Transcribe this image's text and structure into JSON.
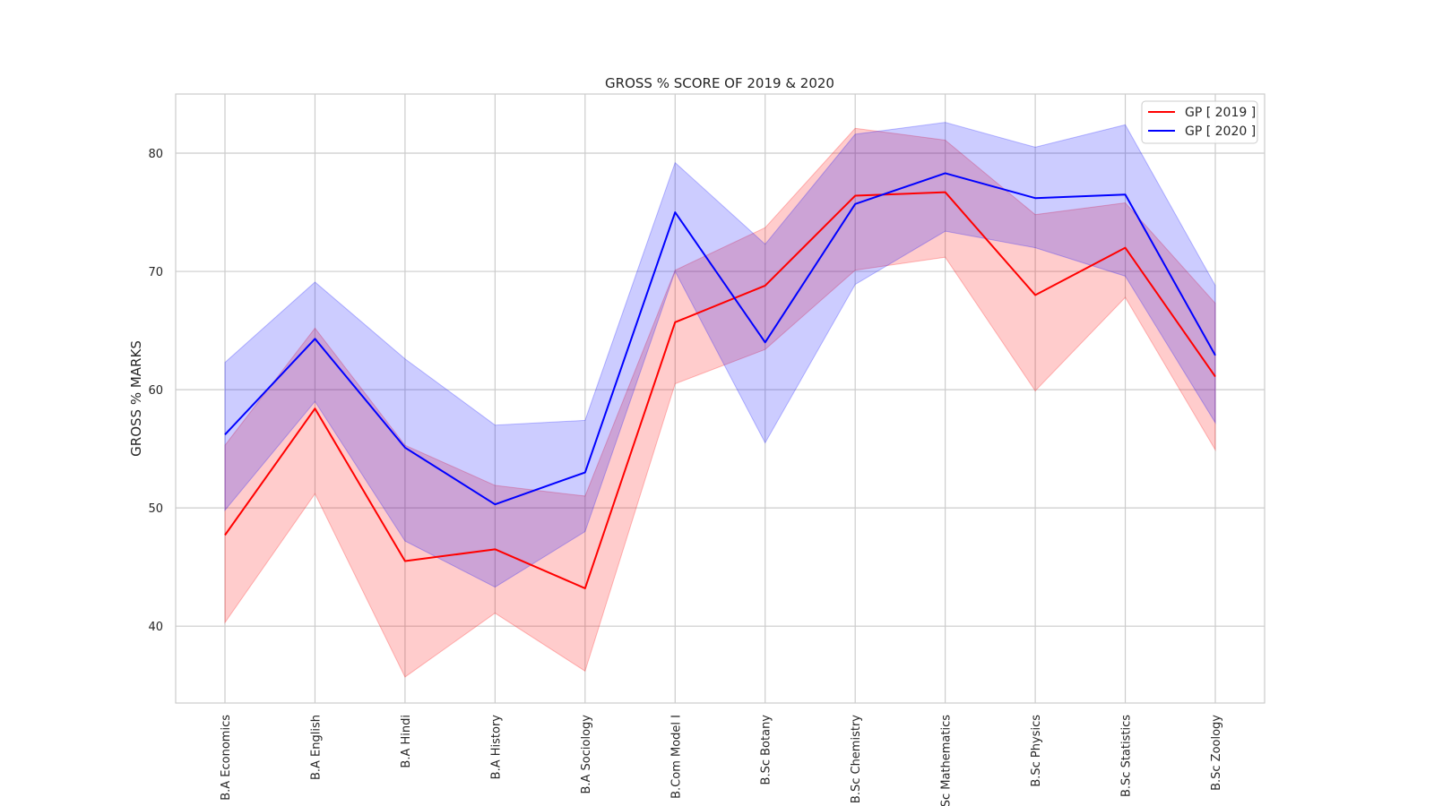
{
  "chart_data": {
    "type": "line",
    "title": "GROSS % SCORE OF 2019 & 2020",
    "xlabel": "",
    "ylabel": "GROSS % MARKS",
    "ylim": [
      33.5,
      85
    ],
    "yticks": [
      40,
      50,
      60,
      70,
      80
    ],
    "categories": [
      "B.A Economics",
      "B.A English",
      "B.A Hindi",
      "B.A History",
      "B.A Sociology",
      "B.Com Model I",
      "B.Sc Botany",
      "B.Sc Chemistry",
      "B.Sc Mathematics",
      "B.Sc Physics",
      "B.Sc Statistics",
      "B.Sc Zoology"
    ],
    "grid": true,
    "legend": "top-right",
    "series": [
      {
        "name": "GP [ 2019 ]",
        "color": "#ff0000",
        "values": [
          47.7,
          58.4,
          45.5,
          46.5,
          43.2,
          65.7,
          68.8,
          76.4,
          76.7,
          68.0,
          72.0,
          61.1
        ],
        "band_lower": [
          40.3,
          51.2,
          35.7,
          41.1,
          36.2,
          60.5,
          63.4,
          70.1,
          71.2,
          59.9,
          67.8,
          54.9
        ],
        "band_upper": [
          55.3,
          65.2,
          55.3,
          51.9,
          51.0,
          70.1,
          73.7,
          82.1,
          81.1,
          74.8,
          75.8,
          67.3
        ]
      },
      {
        "name": "GP [ 2020 ]",
        "color": "#0000ff",
        "values": [
          56.2,
          64.3,
          55.1,
          50.3,
          53.0,
          75.0,
          64.0,
          75.7,
          78.3,
          76.2,
          76.5,
          62.9
        ],
        "band_lower": [
          49.8,
          59.0,
          47.2,
          43.3,
          48.0,
          70.0,
          55.5,
          68.9,
          73.4,
          72.0,
          69.6,
          57.2
        ],
        "band_upper": [
          62.3,
          69.1,
          62.6,
          57.0,
          57.4,
          79.2,
          72.3,
          81.6,
          82.6,
          80.5,
          82.4,
          68.8
        ]
      }
    ]
  }
}
